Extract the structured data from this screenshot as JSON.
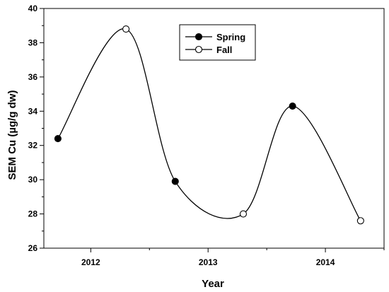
{
  "chart_data": {
    "type": "line",
    "title": "",
    "xlabel": "Year",
    "ylabel": "SEM Cu (µg/g dw)",
    "xlim": [
      2011.6,
      2014.5
    ],
    "ylim": [
      26,
      40
    ],
    "x_ticks": [
      2012,
      2013,
      2014
    ],
    "x_tick_labels": [
      "2012",
      "2013",
      "2014"
    ],
    "y_ticks": [
      26,
      28,
      30,
      32,
      34,
      36,
      38,
      40
    ],
    "y_tick_labels": [
      "26",
      "28",
      "30",
      "32",
      "34",
      "36",
      "38",
      "40"
    ],
    "grid": false,
    "legend_position": "top-center",
    "smooth_curve": true,
    "series": [
      {
        "name": "Spring",
        "marker": "filled-circle",
        "color": "#000000",
        "x": [
          2011.72,
          2012.72,
          2013.72
        ],
        "y": [
          32.4,
          29.9,
          34.3
        ]
      },
      {
        "name": "Fall",
        "marker": "open-circle",
        "color": "#000000",
        "x": [
          2012.3,
          2013.3,
          2014.3
        ],
        "y": [
          38.8,
          28.0,
          27.6
        ]
      }
    ]
  }
}
